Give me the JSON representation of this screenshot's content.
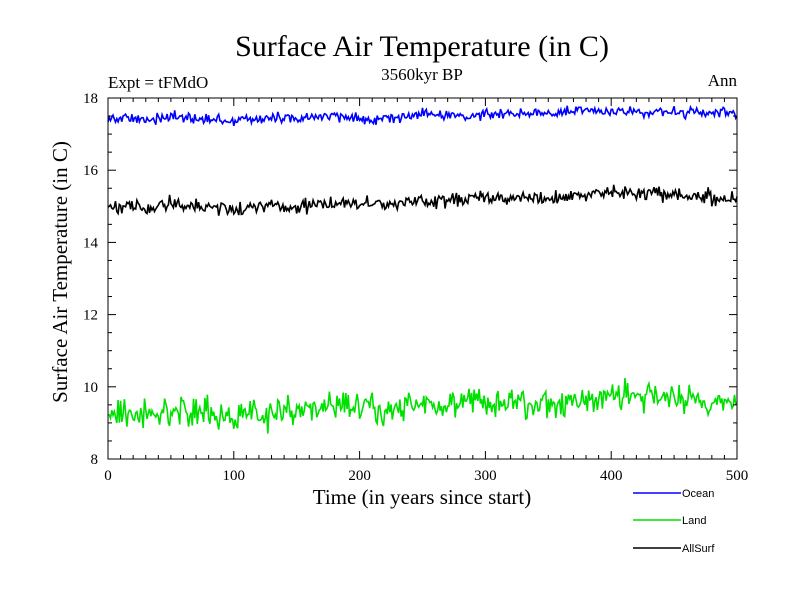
{
  "chart_data": {
    "type": "line",
    "title": "Surface Air Temperature (in C)",
    "subtitle_left": "Expt = tFMdO",
    "subtitle_center": "3560kyr BP",
    "subtitle_right": "Ann",
    "xlabel": "Time (in years since start)",
    "ylabel": "Surface Air Temperature (in C)",
    "xlim": [
      0,
      500
    ],
    "ylim": [
      8,
      18
    ],
    "x_ticks": [
      0,
      100,
      200,
      300,
      400,
      500
    ],
    "y_ticks": [
      8,
      10,
      12,
      14,
      16,
      18
    ],
    "grid": false,
    "legend_position": "bottom-right, outside plot",
    "x": [
      0,
      25,
      50,
      75,
      100,
      125,
      150,
      175,
      200,
      225,
      250,
      275,
      300,
      325,
      350,
      375,
      400,
      425,
      450,
      475,
      500
    ],
    "series": [
      {
        "name": "Ocean",
        "color": "#0000ff",
        "values": [
          17.45,
          17.4,
          17.48,
          17.4,
          17.38,
          17.45,
          17.42,
          17.5,
          17.42,
          17.45,
          17.55,
          17.5,
          17.55,
          17.6,
          17.58,
          17.62,
          17.65,
          17.62,
          17.6,
          17.58,
          17.55
        ],
        "noise": 0.15
      },
      {
        "name": "Land",
        "color": "#00e000",
        "values": [
          9.4,
          9.2,
          9.35,
          9.25,
          9.15,
          9.25,
          9.3,
          9.5,
          9.4,
          9.35,
          9.45,
          9.55,
          9.55,
          9.6,
          9.55,
          9.6,
          9.75,
          9.8,
          9.7,
          9.6,
          9.55
        ],
        "noise": 0.4
      },
      {
        "name": "AllSurf",
        "color": "#000000",
        "values": [
          15.0,
          14.95,
          15.05,
          14.98,
          14.9,
          14.98,
          15.0,
          15.1,
          15.05,
          15.02,
          15.15,
          15.18,
          15.22,
          15.25,
          15.22,
          15.3,
          15.4,
          15.38,
          15.3,
          15.25,
          15.2
        ],
        "noise": 0.2
      }
    ]
  }
}
